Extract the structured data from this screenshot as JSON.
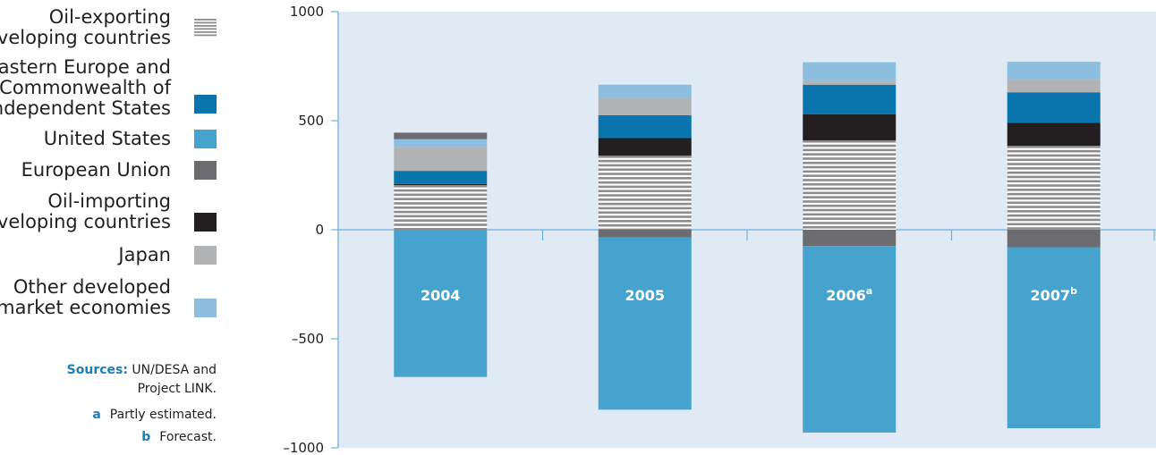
{
  "colors": {
    "oil_exporting": "#8c8c8c",
    "eecis": "#0a74ad",
    "united_states": "#45a3cd",
    "european_union": "#6c6c70",
    "oil_importing": "#231f20",
    "japan": "#b2b3b5",
    "other_developed": "#8bbedf",
    "plot_bg": "#dfeaf4",
    "axis": "#6fb0d6",
    "accent": "#1a7fb8"
  },
  "legend": [
    {
      "label": "Oil-exporting\ndeveloping countries",
      "color": "#8c8c8c",
      "pattern": "stripes"
    },
    {
      "label": "Eastern Europe and\nCommonwealth of\nIndependent States",
      "color": "#0a74ad"
    },
    {
      "label": "United States",
      "color": "#45a3cd"
    },
    {
      "label": "European Union",
      "color": "#6c6c70"
    },
    {
      "label": "Oil-importing\ndeveloping countries",
      "color": "#231f20"
    },
    {
      "label": "Japan",
      "color": "#b2b3b5"
    },
    {
      "label": "Other developed\nmarket economies",
      "color": "#8bbedf"
    }
  ],
  "notes": {
    "sources_label": "Sources:",
    "sources_text_1": "UN/DESA and",
    "sources_text_2": "Project LINK.",
    "a_marker": "a",
    "a_text": "Partly estimated.",
    "b_marker": "b",
    "b_text": "Forecast."
  },
  "chart_data": {
    "type": "bar",
    "stacked": true,
    "categories": [
      "2004",
      "2005",
      "2006a",
      "2007b"
    ],
    "category_labels": [
      {
        "text": "2004",
        "sup": ""
      },
      {
        "text": "2005",
        "sup": ""
      },
      {
        "text": "2006",
        "sup": "a"
      },
      {
        "text": "2007",
        "sup": "b"
      }
    ],
    "ylim": [
      -1000,
      1000
    ],
    "yticks": [
      1000,
      500,
      0,
      -500,
      -1000
    ],
    "ytick_labels": [
      "1000",
      "500",
      "0",
      "–500",
      "–1000"
    ],
    "grid": false,
    "legend_position": "left",
    "series": [
      {
        "name": "Oil-exporting developing countries",
        "color": "#8c8c8c",
        "pattern": "stripes",
        "values": [
          205,
          340,
          410,
          385
        ]
      },
      {
        "name": "Oil-importing developing countries",
        "color": "#231f20",
        "values": [
          5,
          80,
          120,
          105
        ]
      },
      {
        "name": "Eastern Europe and Commonwealth of Independent States",
        "color": "#0a74ad",
        "values": [
          60,
          105,
          135,
          140
        ]
      },
      {
        "name": "Japan",
        "color": "#b2b3b5",
        "values": [
          110,
          80,
          18,
          60
        ]
      },
      {
        "name": "Other developed market economies",
        "color": "#8bbedf",
        "values": [
          35,
          60,
          85,
          80
        ]
      },
      {
        "name": "European Union",
        "color": "#6c6c70",
        "values": [
          30,
          -35,
          -75,
          -80
        ]
      },
      {
        "name": "United States",
        "color": "#45a3cd",
        "values": [
          -675,
          -790,
          -855,
          -830
        ]
      }
    ]
  }
}
